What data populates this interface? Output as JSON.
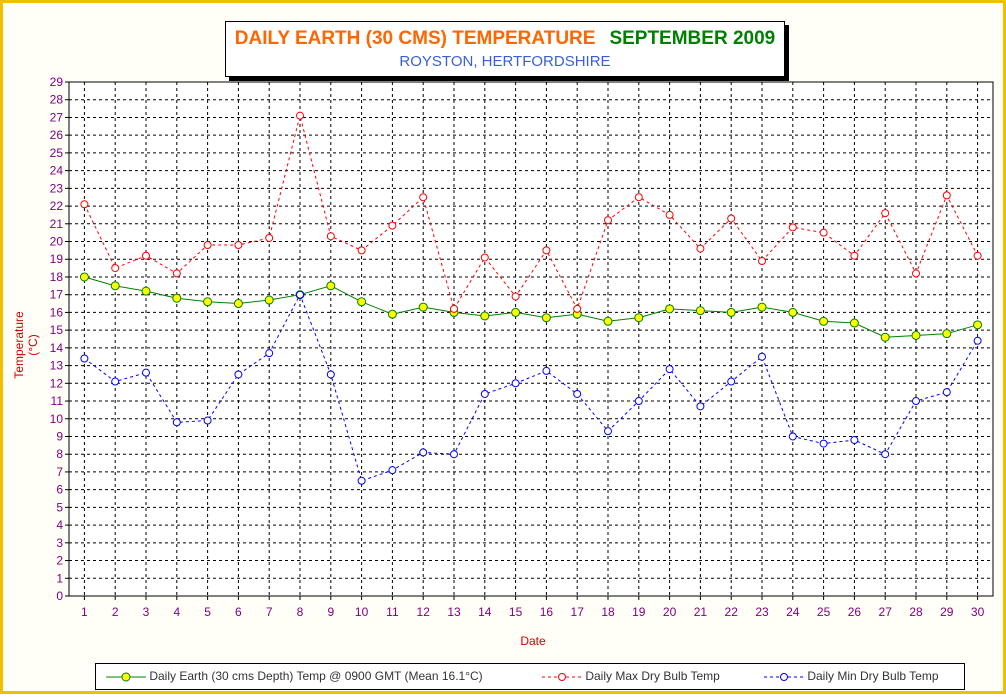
{
  "title": {
    "line1_part1": "DAILY EARTH (30 CMS) TEMPERATURE",
    "line1_part2": "SEPTEMBER 2009",
    "line2": "ROYSTON, HERTFORDSHIRE"
  },
  "colors": {
    "title_orange": "#ff6600",
    "title_green": "#008000",
    "subtitle_blue": "#3a5fd6",
    "earth_line": "#008000",
    "earth_marker": "#ffff00",
    "max_line": "#ff0000",
    "min_line": "#0000ff",
    "tick_label": "#800080",
    "axis_title": "#cc0000",
    "frame": "#f0c000"
  },
  "chart_data": {
    "type": "line",
    "xlabel": "Date",
    "ylabel": "Temperature (°C)",
    "ylim": [
      0,
      29
    ],
    "ytick_step": 1,
    "grid": true,
    "legend_position": "bottom",
    "x": [
      1,
      2,
      3,
      4,
      5,
      6,
      7,
      8,
      9,
      10,
      11,
      12,
      13,
      14,
      15,
      16,
      17,
      18,
      19,
      20,
      21,
      22,
      23,
      24,
      25,
      26,
      27,
      28,
      29,
      30
    ],
    "series": [
      {
        "name": "Daily Earth (30 cms Depth) Temp @ 0900 GMT (Mean 16.1°C)",
        "style": "solid",
        "values": [
          18.0,
          17.5,
          17.2,
          16.8,
          16.6,
          16.5,
          16.7,
          17.0,
          17.5,
          16.6,
          15.9,
          16.3,
          16.0,
          15.8,
          16.0,
          15.7,
          15.9,
          15.5,
          15.7,
          16.2,
          16.1,
          16.0,
          16.3,
          16.0,
          15.5,
          15.4,
          14.6,
          14.7,
          14.8,
          15.3
        ]
      },
      {
        "name": "Daily Max Dry Bulb Temp",
        "style": "dashed",
        "values": [
          22.1,
          18.5,
          19.2,
          18.2,
          19.8,
          19.8,
          20.2,
          27.1,
          20.3,
          19.5,
          20.9,
          22.5,
          16.2,
          19.1,
          16.9,
          19.5,
          16.2,
          21.2,
          22.5,
          21.5,
          19.6,
          21.3,
          18.9,
          20.8,
          20.5,
          19.2,
          21.6,
          18.2,
          22.6,
          19.2
        ]
      },
      {
        "name": "Daily Min Dry Bulb Temp",
        "style": "dashed",
        "values": [
          13.4,
          12.1,
          12.6,
          9.8,
          9.9,
          12.5,
          13.7,
          17.0,
          12.5,
          6.5,
          7.1,
          8.1,
          8.0,
          11.4,
          12.0,
          12.7,
          11.4,
          9.3,
          11.0,
          12.8,
          10.7,
          12.1,
          13.5,
          9.0,
          8.6,
          8.8,
          8.0,
          11.0,
          11.5,
          14.4
        ]
      }
    ]
  }
}
